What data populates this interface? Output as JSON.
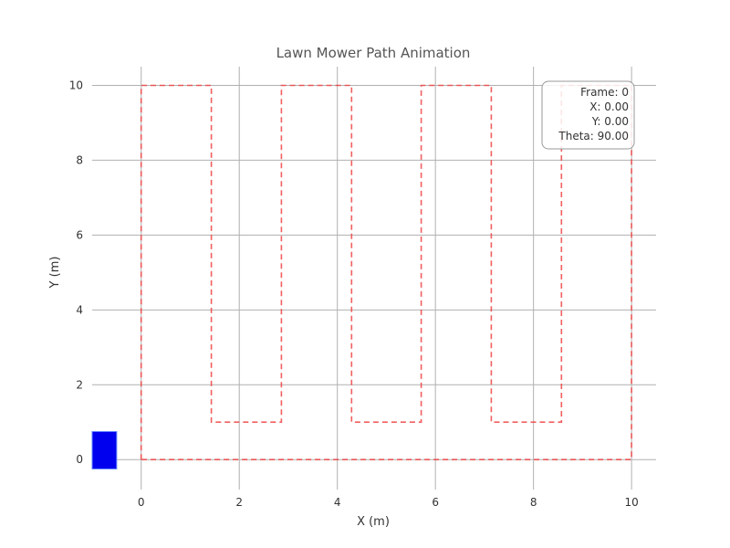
{
  "chart_data": {
    "type": "line",
    "title": "Lawn Mower Path Animation",
    "xlabel": "X (m)",
    "ylabel": "Y (m)",
    "xlim": [
      -1.0,
      10.5
    ],
    "ylim": [
      -0.8,
      10.5
    ],
    "xticks": [
      "0",
      "2",
      "4",
      "6",
      "8",
      "10"
    ],
    "yticks": [
      "0",
      "2",
      "4",
      "6",
      "8",
      "10"
    ],
    "grid": true,
    "series": [
      {
        "style": "dashed",
        "color": "#ee4444",
        "x": [
          0,
          0,
          1.43,
          1.43,
          2.86,
          2.86,
          4.29,
          4.29,
          5.71,
          5.71,
          7.14,
          7.14,
          8.57,
          8.57,
          10,
          10,
          0
        ],
        "y": [
          0,
          10,
          10,
          1,
          1,
          10,
          10,
          1,
          1,
          10,
          10,
          1,
          1,
          10,
          10,
          0,
          0
        ]
      }
    ],
    "mower": {
      "color": "#0000ee",
      "x_range": [
        -1.0,
        -0.5
      ],
      "y_range": [
        -0.25,
        0.75
      ]
    },
    "info_box": {
      "placement": "top-right",
      "lines": [
        "Frame: 0",
        "X: 0.00",
        "Y: 0.00",
        "Theta: 90.00"
      ]
    }
  }
}
